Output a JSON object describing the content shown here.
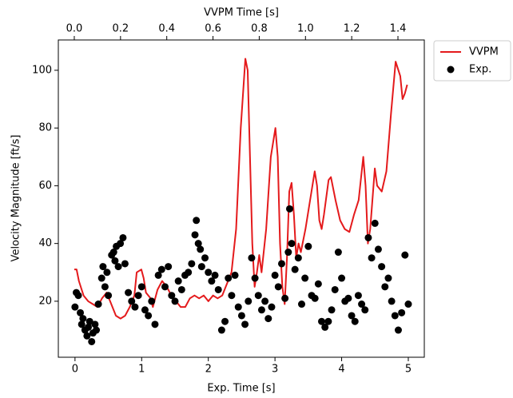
{
  "chart_data": {
    "type": "combo",
    "xlabel": "Exp. Time [s]",
    "x2label": "VVPM Time [s]",
    "ylabel": "Velocity Magnitude [ft/s]",
    "xlim": [
      -0.25,
      5.24
    ],
    "xticks": [
      0,
      1,
      2,
      3,
      4,
      5
    ],
    "x2lim": [
      -0.069,
      1.514
    ],
    "x2ticks": [
      {
        "value": 0,
        "label": "0.0"
      },
      0.2,
      0.4,
      0.6,
      0.8,
      {
        "value": 1,
        "label": "1.0"
      },
      1.2,
      1.4
    ],
    "ylim": [
      0.6,
      110.5
    ],
    "yticks": [
      20,
      40,
      60,
      80,
      100
    ],
    "legend": "outside right",
    "series": [
      {
        "name": "VVPM",
        "type": "line",
        "axis": "x2",
        "color": "#e41a1c",
        "x": [
          0,
          0.01,
          0.02,
          0.04,
          0.06,
          0.08,
          0.1,
          0.12,
          0.14,
          0.16,
          0.18,
          0.2,
          0.22,
          0.24,
          0.26,
          0.27,
          0.29,
          0.3,
          0.31,
          0.33,
          0.34,
          0.36,
          0.38,
          0.4,
          0.42,
          0.44,
          0.46,
          0.48,
          0.5,
          0.52,
          0.54,
          0.56,
          0.58,
          0.6,
          0.62,
          0.64,
          0.66,
          0.68,
          0.7,
          0.72,
          0.74,
          0.75,
          0.76,
          0.77,
          0.78,
          0.79,
          0.8,
          0.81,
          0.83,
          0.85,
          0.87,
          0.88,
          0.89,
          0.9,
          0.91,
          0.92,
          0.93,
          0.94,
          0.95,
          0.96,
          0.97,
          0.98,
          1.0,
          1.02,
          1.04,
          1.05,
          1.06,
          1.07,
          1.08,
          1.1,
          1.11,
          1.13,
          1.15,
          1.17,
          1.19,
          1.21,
          1.23,
          1.25,
          1.26,
          1.27,
          1.28,
          1.3,
          1.31,
          1.33,
          1.35,
          1.37,
          1.39,
          1.41,
          1.42,
          1.43,
          1.44
        ],
        "values": [
          31,
          31,
          27,
          22,
          20,
          19,
          18,
          21,
          23,
          19,
          15,
          14,
          15,
          18,
          22,
          30,
          31,
          28,
          23,
          21,
          18,
          24,
          27,
          25,
          22,
          20,
          18,
          18,
          21,
          22,
          21,
          22,
          20,
          22,
          21,
          22,
          26,
          30,
          45,
          80,
          104,
          100,
          70,
          40,
          25,
          30,
          36,
          30,
          45,
          70,
          80,
          70,
          40,
          25,
          19,
          35,
          58,
          61,
          50,
          35,
          40,
          37,
          45,
          55,
          65,
          60,
          48,
          45,
          50,
          62,
          63,
          55,
          48,
          45,
          44,
          50,
          55,
          70,
          60,
          40,
          45,
          66,
          60,
          58,
          65,
          85,
          103,
          98,
          90,
          92,
          95
        ]
      },
      {
        "name": "Exp.",
        "type": "scatter",
        "color": "#000000",
        "x": [
          0,
          0.02,
          0.05,
          0.08,
          0.1,
          0.12,
          0.15,
          0.18,
          0.2,
          0.22,
          0.25,
          0.27,
          0.3,
          0.32,
          0.35,
          0.4,
          0.42,
          0.45,
          0.48,
          0.5,
          0.55,
          0.58,
          0.6,
          0.62,
          0.65,
          0.68,
          0.72,
          0.75,
          0.8,
          0.85,
          0.9,
          0.95,
          1.0,
          1.05,
          1.1,
          1.15,
          1.2,
          1.25,
          1.3,
          1.35,
          1.4,
          1.45,
          1.5,
          1.55,
          1.6,
          1.65,
          1.7,
          1.75,
          1.8,
          1.82,
          1.85,
          1.88,
          1.9,
          1.95,
          2.0,
          2.05,
          2.1,
          2.15,
          2.2,
          2.25,
          2.3,
          2.35,
          2.4,
          2.45,
          2.5,
          2.55,
          2.6,
          2.65,
          2.7,
          2.75,
          2.8,
          2.85,
          2.9,
          2.95,
          3.0,
          3.05,
          3.1,
          3.15,
          3.2,
          3.22,
          3.25,
          3.3,
          3.35,
          3.4,
          3.45,
          3.5,
          3.55,
          3.6,
          3.65,
          3.7,
          3.75,
          3.8,
          3.85,
          3.9,
          3.95,
          4.0,
          4.05,
          4.1,
          4.15,
          4.2,
          4.25,
          4.3,
          4.35,
          4.4,
          4.45,
          4.5,
          4.55,
          4.6,
          4.65,
          4.7,
          4.75,
          4.8,
          4.85,
          4.9,
          4.95,
          5.0
        ],
        "values": [
          18,
          23,
          22,
          16,
          12,
          14,
          10,
          8,
          11,
          13,
          6,
          9,
          12,
          10,
          19,
          28,
          32,
          25,
          30,
          22,
          36,
          37,
          34,
          39,
          32,
          40,
          42,
          33,
          23,
          20,
          18,
          22,
          25,
          17,
          15,
          20,
          12,
          29,
          31,
          25,
          32,
          22,
          20,
          27,
          24,
          29,
          30,
          33,
          43,
          48,
          40,
          38,
          32,
          35,
          30,
          27,
          29,
          24,
          10,
          13,
          28,
          22,
          29,
          18,
          15,
          12,
          20,
          35,
          28,
          22,
          17,
          20,
          14,
          18,
          29,
          25,
          33,
          21,
          37,
          52,
          40,
          31,
          35,
          19,
          28,
          39,
          22,
          21,
          26,
          13,
          11,
          13,
          17,
          24,
          37,
          28,
          20,
          21,
          15,
          13,
          22,
          19,
          17,
          42,
          35,
          47,
          38,
          32,
          25,
          28,
          20,
          15,
          10,
          16,
          36,
          19
        ]
      }
    ]
  }
}
